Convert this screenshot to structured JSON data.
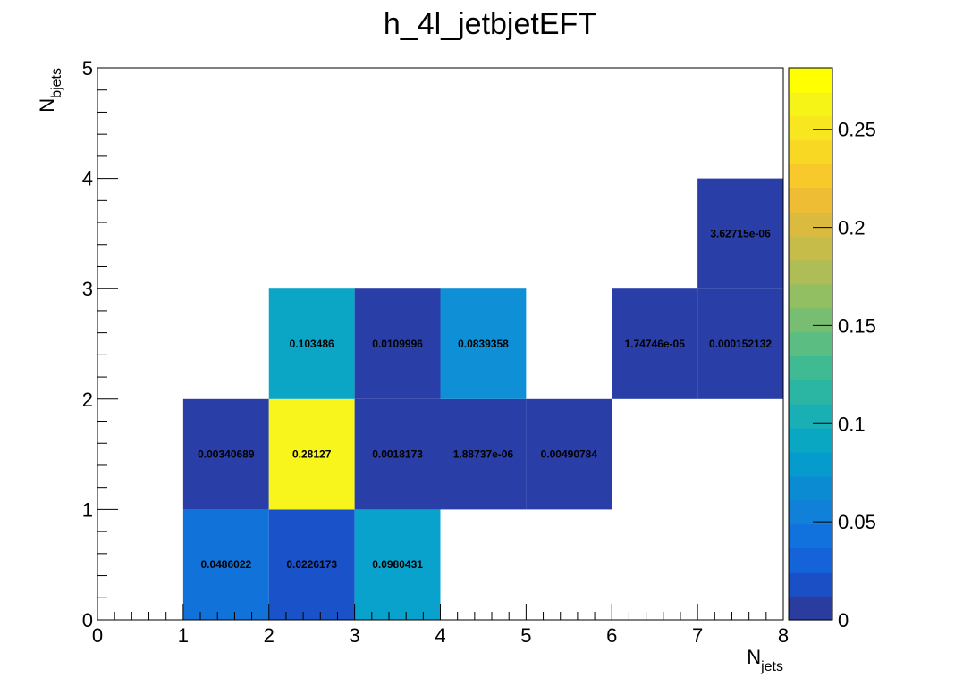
{
  "chart_data": {
    "type": "heatmap",
    "title": "h_4l_jetbjetEFT",
    "xlabel": {
      "main": "N",
      "sub": "jets"
    },
    "ylabel": {
      "main": "N",
      "sub": "bjets"
    },
    "xlim": [
      0,
      8
    ],
    "ylim": [
      0,
      5
    ],
    "x_ticks": [
      "0",
      "1",
      "2",
      "3",
      "4",
      "5",
      "6",
      "7",
      "8"
    ],
    "y_ticks": [
      "0",
      "1",
      "2",
      "3",
      "4",
      "5"
    ],
    "colorbar": {
      "min": 0,
      "max": 0.28127,
      "ticks": [
        {
          "value": 0,
          "label": "0"
        },
        {
          "value": 0.05,
          "label": "0.05"
        },
        {
          "value": 0.1,
          "label": "0.1"
        },
        {
          "value": 0.15,
          "label": "0.15"
        },
        {
          "value": 0.2,
          "label": "0.2"
        },
        {
          "value": 0.25,
          "label": "0.25"
        }
      ],
      "palette": [
        "#2a3d9e",
        "#1a4fc6",
        "#1463d9",
        "#1272dd",
        "#1180d8",
        "#0b8cd2",
        "#059bcc",
        "#0aa7c2",
        "#1aafb4",
        "#2bb6a4",
        "#3fba93",
        "#5bbd82",
        "#77be72",
        "#93bf63",
        "#aebd55",
        "#c6bc49",
        "#dbbb3f",
        "#eebd34",
        "#f7c92b",
        "#f9d824",
        "#f8e61e",
        "#f6f417",
        "#ffff00"
      ]
    },
    "cells": [
      {
        "x": [
          1,
          2
        ],
        "y": [
          0,
          1
        ],
        "value": 0.0486022,
        "label": "0.0486022",
        "color": "#1172d9"
      },
      {
        "x": [
          2,
          3
        ],
        "y": [
          0,
          1
        ],
        "value": 0.0226173,
        "label": "0.0226173",
        "color": "#1a52ca"
      },
      {
        "x": [
          3,
          4
        ],
        "y": [
          0,
          1
        ],
        "value": 0.0980431,
        "label": "0.0980431",
        "color": "#09a2cc"
      },
      {
        "x": [
          1,
          2
        ],
        "y": [
          1,
          2
        ],
        "value": 0.00340689,
        "label": "0.00340689",
        "color": "#2a3ea8"
      },
      {
        "x": [
          2,
          3
        ],
        "y": [
          1,
          2
        ],
        "value": 0.28127,
        "label": "0.28127",
        "color": "#f7f51b"
      },
      {
        "x": [
          3,
          4
        ],
        "y": [
          1,
          2
        ],
        "value": 0.0018173,
        "label": "0.0018173",
        "color": "#2a3ea8"
      },
      {
        "x": [
          4,
          5
        ],
        "y": [
          1,
          2
        ],
        "value": 1.88737e-06,
        "label": "1.88737e-06",
        "color": "#2a3ea8"
      },
      {
        "x": [
          5,
          6
        ],
        "y": [
          1,
          2
        ],
        "value": 0.00490784,
        "label": "0.00490784",
        "color": "#2a3ea8"
      },
      {
        "x": [
          2,
          3
        ],
        "y": [
          2,
          3
        ],
        "value": 0.103486,
        "label": "0.103486",
        "color": "#0ba6c6"
      },
      {
        "x": [
          3,
          4
        ],
        "y": [
          2,
          3
        ],
        "value": 0.0109996,
        "label": "0.0109996",
        "color": "#2a3ea8"
      },
      {
        "x": [
          4,
          5
        ],
        "y": [
          2,
          3
        ],
        "value": 0.0839358,
        "label": "0.0839358",
        "color": "#0e8fd6"
      },
      {
        "x": [
          6,
          7
        ],
        "y": [
          2,
          3
        ],
        "value": 1.74746e-05,
        "label": "1.74746e-05",
        "color": "#2a3ea8"
      },
      {
        "x": [
          7,
          8
        ],
        "y": [
          2,
          3
        ],
        "value": 0.000152132,
        "label": "0.000152132",
        "color": "#2a3ea8"
      },
      {
        "x": [
          7,
          8
        ],
        "y": [
          3,
          4
        ],
        "value": 3.62715e-06,
        "label": "3.62715e-06",
        "color": "#2a3ea8"
      }
    ],
    "grid": false,
    "legend": "colorbar-right"
  }
}
